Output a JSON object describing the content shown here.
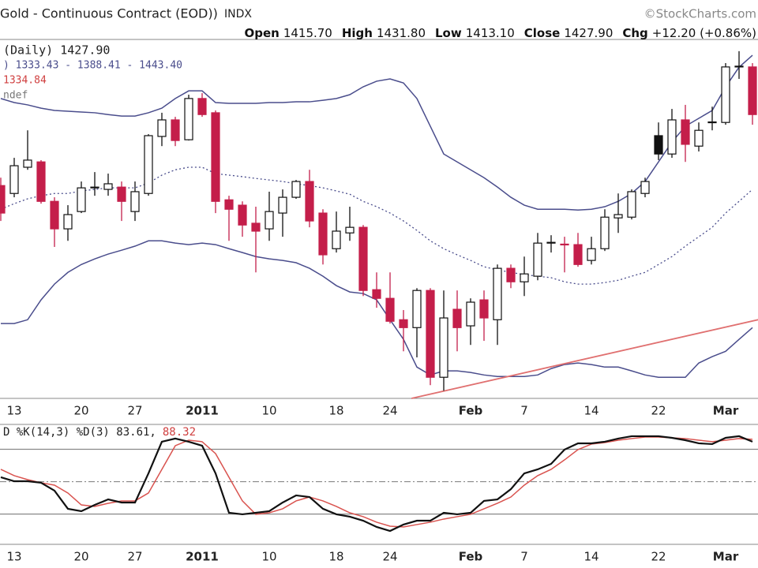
{
  "header": {
    "title": "Gold - Continuous Contract (EOD))",
    "exchange": "INDX",
    "source": "©StockCharts.com",
    "quote": [
      {
        "label": "Open",
        "value": "1415.70"
      },
      {
        "label": "High",
        "value": "1431.80"
      },
      {
        "label": "Low",
        "value": "1413.10"
      },
      {
        "label": "Close",
        "value": "1427.90"
      },
      {
        "label": "Chg",
        "value": "+12.20 (+0.86%)"
      }
    ]
  },
  "chart_data": [
    {
      "type": "candlestick",
      "categories": [
        null,
        "13",
        null,
        null,
        null,
        null,
        "20",
        null,
        null,
        null,
        "27",
        null,
        null,
        null,
        null,
        "2011",
        null,
        null,
        null,
        null,
        "10",
        null,
        null,
        null,
        null,
        "18",
        null,
        null,
        null,
        "24",
        null,
        null,
        null,
        null,
        null,
        "Feb",
        null,
        null,
        null,
        "7",
        null,
        null,
        null,
        null,
        "14",
        null,
        null,
        null,
        null,
        "22",
        null,
        null,
        null,
        null,
        "Mar",
        null,
        null
      ],
      "open": [
        1388.6,
        1385.5,
        1395.8,
        1397.9,
        1382.4,
        1371.6,
        1378.4,
        1387.7,
        1387.1,
        1388.0,
        1378.4,
        1385.5,
        1407.9,
        1414.4,
        1406.6,
        1422.8,
        1417.2,
        1383.0,
        1380.9,
        1373.8,
        1371.6,
        1377.8,
        1384.0,
        1390.2,
        1377.8,
        1363.8,
        1370.0,
        1372.2,
        1347.7,
        1344.3,
        1335.9,
        1332.8,
        1347.4,
        1313.3,
        1340.0,
        1333.5,
        1343.7,
        1335.9,
        1356.1,
        1350.8,
        1353.0,
        1366.0,
        1365.4,
        1365.4,
        1359.2,
        1363.8,
        1375.9,
        1376.2,
        1385.5,
        1408.2,
        1401.0,
        1414.4,
        1404.1,
        1413.4,
        1413.4,
        1435.2,
        1435.2
      ],
      "high": [
        1391.7,
        1399.5,
        1410.3,
        1398.6,
        1384.0,
        1380.9,
        1390.2,
        1393.9,
        1393.3,
        1390.2,
        1390.2,
        1408.8,
        1417.2,
        1415.6,
        1424.3,
        1424.9,
        1418.1,
        1384.6,
        1382.4,
        1380.3,
        1386.2,
        1387.1,
        1390.8,
        1394.8,
        1379.3,
        1378.4,
        1380.3,
        1373.1,
        1354.5,
        1354.5,
        1339.7,
        1348.3,
        1348.3,
        1347.4,
        1347.4,
        1344.3,
        1347.4,
        1357.6,
        1357.6,
        1360.7,
        1370.0,
        1369.1,
        1368.5,
        1370.0,
        1368.5,
        1379.3,
        1385.5,
        1387.1,
        1391.7,
        1413.4,
        1418.7,
        1420.3,
        1413.4,
        1419.6,
        1436.7,
        1441.4,
        1436.7
      ],
      "low": [
        1374.7,
        1384.0,
        1394.8,
        1381.5,
        1364.5,
        1366.9,
        1377.8,
        1384.6,
        1384.6,
        1374.7,
        1374.7,
        1384.6,
        1404.1,
        1404.1,
        1406.3,
        1415.6,
        1377.8,
        1366.9,
        1368.5,
        1354.5,
        1366.9,
        1368.5,
        1383.4,
        1372.2,
        1357.6,
        1362.3,
        1366.9,
        1345.2,
        1340.6,
        1334.4,
        1323.5,
        1321.1,
        1310.2,
        1308.0,
        1323.5,
        1326.0,
        1327.6,
        1326.0,
        1348.3,
        1345.2,
        1351.4,
        1362.3,
        1354.5,
        1356.7,
        1357.6,
        1362.9,
        1370.0,
        1375.3,
        1384.0,
        1398.6,
        1399.5,
        1397.9,
        1402.0,
        1410.3,
        1412.5,
        1430.5,
        1412.5
      ],
      "close": [
        1377.8,
        1396.4,
        1398.6,
        1382.4,
        1371.6,
        1377.2,
        1387.7,
        1388.0,
        1389.3,
        1382.4,
        1386.2,
        1408.2,
        1414.4,
        1406.3,
        1422.8,
        1416.5,
        1382.4,
        1379.3,
        1373.1,
        1370.7,
        1378.4,
        1384.0,
        1390.2,
        1374.7,
        1361.4,
        1370.7,
        1372.2,
        1347.4,
        1344.3,
        1335.3,
        1332.8,
        1347.4,
        1313.3,
        1336.6,
        1332.8,
        1342.8,
        1336.6,
        1356.1,
        1350.8,
        1353.9,
        1366.0,
        1366.3,
        1365.6,
        1357.6,
        1363.8,
        1376.2,
        1377.2,
        1386.2,
        1390.2,
        1401.0,
        1414.4,
        1404.8,
        1410.3,
        1413.6,
        1435.2,
        1435.5,
        1416.5
      ],
      "up_color": "#111111",
      "down_color": "#c41e4a",
      "ylim": [
        1305,
        1446
      ],
      "bands": {
        "color": "#4a4d8c",
        "upper": [
          1422.8,
          1421.2,
          1420.3,
          1419.0,
          1418.1,
          1417.8,
          1417.5,
          1417.2,
          1416.5,
          1415.9,
          1415.9,
          1417.2,
          1419.0,
          1422.8,
          1425.8,
          1425.8,
          1421.2,
          1420.9,
          1420.9,
          1420.9,
          1421.2,
          1421.2,
          1421.5,
          1421.5,
          1422.1,
          1422.8,
          1424.3,
          1427.4,
          1429.6,
          1430.5,
          1428.9,
          1422.8,
          1411.9,
          1401.0,
          1397.9,
          1394.8,
          1391.7,
          1388.0,
          1384.0,
          1380.9,
          1379.3,
          1379.3,
          1379.3,
          1379.0,
          1379.3,
          1380.3,
          1382.4,
          1385.5,
          1390.2,
          1397.9,
          1405.7,
          1411.9,
          1415.0,
          1418.1,
          1427.4,
          1435.1,
          1439.8
        ],
        "middle": [
          1379.3,
          1381.5,
          1383.4,
          1384.6,
          1385.5,
          1385.5,
          1386.5,
          1387.1,
          1387.7,
          1387.7,
          1387.7,
          1389.6,
          1392.7,
          1394.8,
          1395.8,
          1395.8,
          1393.3,
          1392.7,
          1392.1,
          1391.4,
          1390.8,
          1390.2,
          1389.3,
          1388.6,
          1387.7,
          1386.5,
          1385.2,
          1382.4,
          1380.3,
          1377.8,
          1374.7,
          1371.0,
          1366.9,
          1363.8,
          1361.4,
          1359.2,
          1356.7,
          1355.5,
          1354.5,
          1353.6,
          1353.0,
          1352.4,
          1350.8,
          1349.9,
          1349.9,
          1350.5,
          1351.4,
          1353.0,
          1354.5,
          1357.6,
          1360.7,
          1364.8,
          1368.5,
          1372.2,
          1377.8,
          1382.4,
          1387.1
        ],
        "lower": [
          1334.4,
          1334.4,
          1335.9,
          1343.7,
          1349.9,
          1354.5,
          1357.6,
          1359.8,
          1361.7,
          1363.2,
          1364.8,
          1366.9,
          1366.9,
          1366.0,
          1365.4,
          1366.0,
          1365.4,
          1363.8,
          1362.3,
          1360.7,
          1359.8,
          1359.2,
          1358.3,
          1356.1,
          1353.0,
          1349.3,
          1346.8,
          1346.2,
          1343.7,
          1335.9,
          1328.2,
          1317.3,
          1314.2,
          1315.8,
          1315.8,
          1315.2,
          1314.2,
          1313.6,
          1313.6,
          1313.6,
          1314.2,
          1316.7,
          1318.3,
          1318.9,
          1318.3,
          1317.3,
          1317.3,
          1315.8,
          1314.2,
          1313.3,
          1313.3,
          1313.3,
          1318.9,
          1321.4,
          1323.5,
          1328.2,
          1332.8
        ]
      },
      "trendline": {
        "x": [
          30.6,
          56.5
        ],
        "y": [
          1305.0,
          1336.0
        ],
        "color": "#e07070"
      },
      "legend": [
        {
          "text": "(Daily) 1427.90",
          "color": "#222222"
        },
        {
          "text": ") 1333.43 - 1388.41 - 1443.40",
          "color": "#4a4d8c"
        },
        {
          "text": "1334.84",
          "color": "#d04040"
        },
        {
          "text": "ndef",
          "color": "#777777"
        }
      ]
    },
    {
      "type": "line",
      "categories": [
        null,
        "13",
        null,
        null,
        null,
        null,
        "20",
        null,
        null,
        null,
        "27",
        null,
        null,
        null,
        null,
        "2011",
        null,
        null,
        null,
        null,
        "10",
        null,
        null,
        null,
        null,
        "18",
        null,
        null,
        null,
        "24",
        null,
        null,
        null,
        null,
        null,
        "Feb",
        null,
        null,
        null,
        "7",
        null,
        null,
        null,
        null,
        "14",
        null,
        null,
        null,
        null,
        "22",
        null,
        null,
        null,
        null,
        "Mar",
        null,
        null
      ],
      "ylim": [
        -8,
        103
      ],
      "reference_lines": [
        80,
        50,
        20
      ],
      "series": [
        {
          "color": "#111111",
          "values": [
            54.1,
            50.4,
            50.4,
            49.0,
            41.7,
            24.9,
            22.7,
            28.5,
            33.6,
            30.7,
            30.7,
            57.7,
            87.0,
            89.9,
            87.0,
            83.3,
            57.7,
            21.2,
            19.8,
            21.2,
            22.7,
            30.7,
            37.3,
            35.8,
            24.9,
            19.8,
            17.6,
            13.9,
            8.1,
            4.4,
            10.3,
            13.9,
            13.9,
            21.2,
            19.8,
            21.2,
            32.2,
            33.6,
            43.1,
            57.7,
            61.4,
            66.5,
            79.7,
            85.5,
            85.5,
            87.0,
            89.9,
            92.1,
            92.1,
            92.1,
            90.6,
            88.4,
            85.5,
            84.8,
            90.6,
            92.1,
            87.0
          ]
        },
        {
          "color": "#d9534f",
          "values": [
            61.4,
            55.6,
            51.9,
            49.0,
            46.8,
            39.5,
            28.5,
            27.1,
            30.0,
            32.2,
            32.2,
            39.5,
            61.4,
            83.3,
            88.4,
            87.0,
            76.0,
            54.1,
            32.2,
            19.8,
            21.2,
            24.9,
            32.2,
            35.8,
            32.2,
            27.1,
            21.2,
            17.6,
            12.5,
            8.8,
            8.1,
            10.3,
            12.5,
            15.4,
            17.6,
            19.8,
            24.9,
            30.0,
            35.8,
            46.8,
            55.6,
            61.4,
            70.2,
            79.7,
            84.8,
            86.2,
            88.4,
            89.9,
            91.3,
            91.3,
            90.6,
            89.9,
            88.4,
            87.0,
            88.4,
            89.9,
            89.2
          ]
        }
      ],
      "legend": [
        {
          "text": "D %K(14,3) %D(3) 83.61,",
          "color": "#222222"
        },
        {
          "text": "88.32",
          "color": "#d04040"
        }
      ]
    }
  ]
}
